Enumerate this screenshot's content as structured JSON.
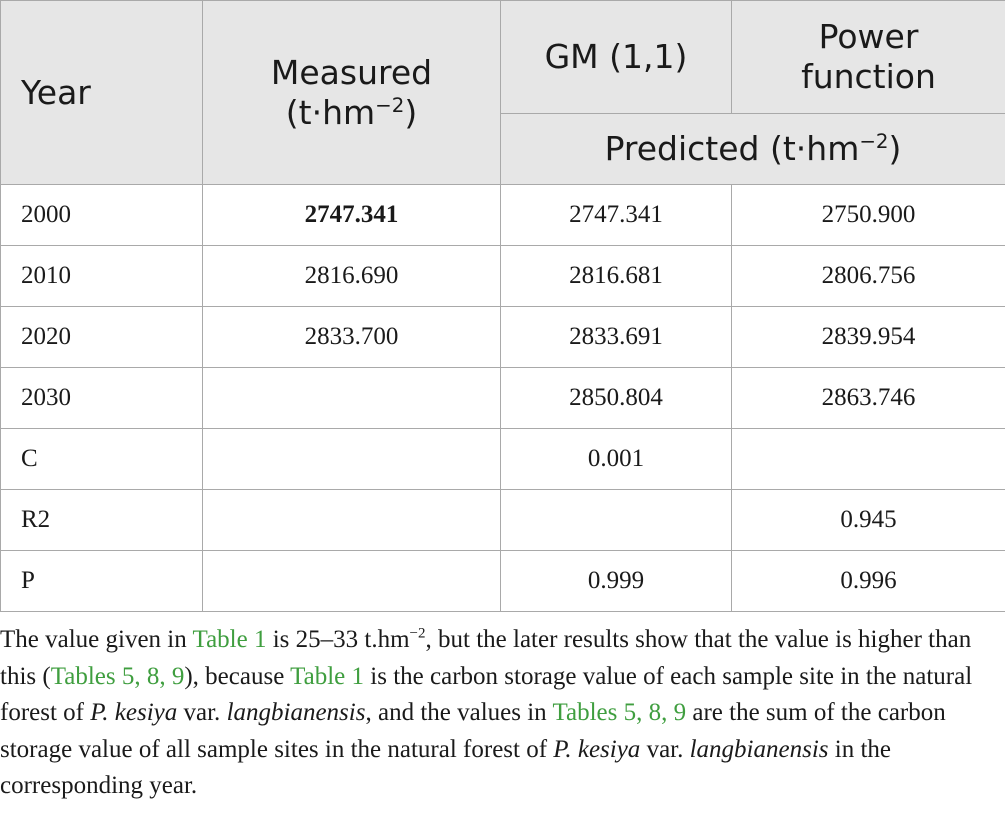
{
  "table": {
    "headers": {
      "year": "Year",
      "measured_line1": "Measured",
      "measured_unit_base": "(t·hm",
      "measured_unit_exp": "−2",
      "measured_unit_end": ")",
      "gm": "GM (1,1)",
      "power_line1": "Power",
      "power_line2": "function",
      "predicted_base": "Predicted (t·hm",
      "predicted_exp": "−2",
      "predicted_end": ")"
    },
    "rows": [
      {
        "label": "2000",
        "measured": "2747.341",
        "gm": "2747.341",
        "power": "2750.900"
      },
      {
        "label": "2010",
        "measured": "2816.690",
        "gm": "2816.681",
        "power": "2806.756"
      },
      {
        "label": "2020",
        "measured": "2833.700",
        "gm": "2833.691",
        "power": "2839.954"
      },
      {
        "label": "2030",
        "measured": "",
        "gm": "2850.804",
        "power": "2863.746"
      },
      {
        "label": "C",
        "measured": "",
        "gm": "0.001",
        "power": ""
      },
      {
        "label": "R2",
        "measured": "",
        "gm": "",
        "power": "0.945"
      },
      {
        "label": "P",
        "measured": "",
        "gm": "0.999",
        "power": "0.996"
      }
    ]
  },
  "caption": {
    "t1": "The value given in ",
    "ref_table1": "Table 1",
    "t2": " is 25–33 t.hm",
    "exp": "−2",
    "t3": ", but the later results show that the value is higher than this (",
    "ref_tables": "Tables 5, 8, 9",
    "t4": "), because ",
    "ref_table1b": "Table 1",
    "t5": " is the carbon storage value of each sample site in the natural forest of ",
    "species1": "P. kesiya",
    "t6": " var. ",
    "variety1": "langbianensis",
    "t7": ", and the values in ",
    "ref_tables2": "Tables 5, 8, 9",
    "t8": " are the sum of the carbon storage value of all sample sites in the natural forest of ",
    "species2": "P. kesiya",
    "t9": " var. ",
    "variety2": "langbianensis",
    "t10": " in the corresponding year."
  }
}
